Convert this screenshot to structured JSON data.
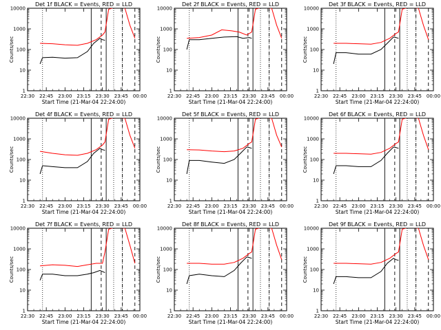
{
  "chart_data": {
    "type": "line",
    "y_scale": "log",
    "ylim": [
      1,
      10000
    ],
    "y_ticks": [
      "1",
      "10",
      "100",
      "1000",
      "10000"
    ],
    "ylabel": "Counts/sec",
    "x_ticks": [
      "22:30",
      "22:45",
      "23:00",
      "23:15",
      "23:30",
      "23:45",
      "00:00"
    ],
    "xlabel": "Start Time (21-Mar-04 22:24:00)",
    "xlim_minutes_after_2230": [
      0,
      90
    ],
    "marker_lines": {
      "dotted_minutes": [
        12,
        69,
        76
      ],
      "solid_minutes": [
        51,
        63
      ],
      "dashed_minutes": [
        59,
        76,
        86
      ]
    },
    "series_colors": {
      "Events": "#000000",
      "LLD": "#ff0000"
    },
    "panels": [
      {
        "title": "Det 1f BLACK = Events, RED = LLD",
        "series": [
          {
            "name": "LLD",
            "points": [
              [
                10,
                200
              ],
              [
                20,
                190
              ],
              [
                30,
                170
              ],
              [
                40,
                160
              ],
              [
                48,
                200
              ],
              [
                55,
                300
              ],
              [
                60,
                500
              ],
              [
                62,
                700
              ],
              [
                65,
                9000
              ],
              [
                70,
                11000
              ],
              [
                72,
                13000
              ],
              [
                78,
                10000
              ],
              [
                82,
                1500
              ],
              [
                86,
                350
              ]
            ]
          },
          {
            "name": "Events",
            "points": [
              [
                10,
                20
              ],
              [
                12,
                40
              ],
              [
                20,
                42
              ],
              [
                30,
                38
              ],
              [
                40,
                40
              ],
              [
                48,
                80
              ],
              [
                53,
                200
              ],
              [
                58,
                350
              ],
              [
                60,
                300
              ],
              [
                62,
                280
              ]
            ]
          }
        ]
      },
      {
        "title": "Det 2f BLACK = Events, RED = LLD",
        "series": [
          {
            "name": "LLD",
            "points": [
              [
                10,
                350
              ],
              [
                20,
                380
              ],
              [
                30,
                500
              ],
              [
                38,
                900
              ],
              [
                46,
                800
              ],
              [
                52,
                700
              ],
              [
                58,
                500
              ],
              [
                62,
                700
              ],
              [
                65,
                9000
              ],
              [
                70,
                11000
              ],
              [
                78,
                10000
              ],
              [
                82,
                1500
              ],
              [
                86,
                350
              ]
            ]
          },
          {
            "name": "Events",
            "points": [
              [
                10,
                100
              ],
              [
                12,
                300
              ],
              [
                20,
                300
              ],
              [
                30,
                350
              ],
              [
                40,
                400
              ],
              [
                50,
                420
              ],
              [
                55,
                350
              ],
              [
                60,
                380
              ],
              [
                62,
                350
              ]
            ]
          }
        ]
      },
      {
        "title": "Det 3f BLACK = Events, RED = LLD",
        "series": [
          {
            "name": "LLD",
            "points": [
              [
                10,
                200
              ],
              [
                20,
                200
              ],
              [
                30,
                190
              ],
              [
                40,
                180
              ],
              [
                48,
                220
              ],
              [
                55,
                350
              ],
              [
                60,
                600
              ],
              [
                62,
                700
              ],
              [
                65,
                9000
              ],
              [
                70,
                11000
              ],
              [
                78,
                10000
              ],
              [
                82,
                1500
              ],
              [
                86,
                300
              ]
            ]
          },
          {
            "name": "Events",
            "points": [
              [
                10,
                20
              ],
              [
                12,
                70
              ],
              [
                20,
                70
              ],
              [
                30,
                60
              ],
              [
                40,
                60
              ],
              [
                48,
                100
              ],
              [
                53,
                200
              ],
              [
                58,
                400
              ],
              [
                60,
                380
              ],
              [
                62,
                350
              ]
            ]
          }
        ]
      },
      {
        "title": "Det 4f BLACK = Events, RED = LLD",
        "series": [
          {
            "name": "LLD",
            "points": [
              [
                10,
                250
              ],
              [
                20,
                200
              ],
              [
                30,
                170
              ],
              [
                40,
                160
              ],
              [
                48,
                200
              ],
              [
                55,
                300
              ],
              [
                60,
                500
              ],
              [
                62,
                700
              ],
              [
                65,
                9000
              ],
              [
                70,
                11000
              ],
              [
                78,
                10000
              ],
              [
                82,
                1500
              ],
              [
                86,
                350
              ]
            ]
          },
          {
            "name": "Events",
            "points": [
              [
                10,
                20
              ],
              [
                12,
                50
              ],
              [
                20,
                45
              ],
              [
                30,
                40
              ],
              [
                40,
                40
              ],
              [
                48,
                80
              ],
              [
                53,
                200
              ],
              [
                58,
                350
              ],
              [
                60,
                300
              ],
              [
                62,
                280
              ]
            ]
          }
        ]
      },
      {
        "title": "Det 5f BLACK = Events, RED = LLD",
        "series": [
          {
            "name": "LLD",
            "points": [
              [
                10,
                300
              ],
              [
                20,
                290
              ],
              [
                30,
                260
              ],
              [
                40,
                240
              ],
              [
                48,
                260
              ],
              [
                55,
                350
              ],
              [
                60,
                600
              ],
              [
                62,
                700
              ],
              [
                65,
                9000
              ],
              [
                70,
                11000
              ],
              [
                78,
                10000
              ],
              [
                82,
                1500
              ],
              [
                86,
                400
              ]
            ]
          },
          {
            "name": "Events",
            "points": [
              [
                10,
                20
              ],
              [
                12,
                90
              ],
              [
                20,
                90
              ],
              [
                30,
                75
              ],
              [
                40,
                65
              ],
              [
                48,
                100
              ],
              [
                53,
                200
              ],
              [
                58,
                400
              ],
              [
                60,
                380
              ],
              [
                62,
                350
              ]
            ]
          }
        ]
      },
      {
        "title": "Det 6f BLACK = Events, RED = LLD",
        "series": [
          {
            "name": "LLD",
            "points": [
              [
                10,
                200
              ],
              [
                20,
                200
              ],
              [
                30,
                190
              ],
              [
                40,
                180
              ],
              [
                48,
                220
              ],
              [
                55,
                350
              ],
              [
                60,
                600
              ],
              [
                62,
                700
              ],
              [
                65,
                9000
              ],
              [
                70,
                11000
              ],
              [
                78,
                10000
              ],
              [
                82,
                1500
              ],
              [
                86,
                300
              ]
            ]
          },
          {
            "name": "Events",
            "points": [
              [
                10,
                20
              ],
              [
                12,
                50
              ],
              [
                20,
                50
              ],
              [
                30,
                45
              ],
              [
                40,
                45
              ],
              [
                48,
                90
              ],
              [
                53,
                200
              ],
              [
                58,
                400
              ],
              [
                60,
                380
              ],
              [
                62,
                350
              ]
            ]
          }
        ]
      },
      {
        "title": "Det 7f BLACK = Events, RED = LLD",
        "series": [
          {
            "name": "LLD",
            "points": [
              [
                10,
                150
              ],
              [
                20,
                170
              ],
              [
                30,
                160
              ],
              [
                40,
                140
              ],
              [
                48,
                170
              ],
              [
                55,
                200
              ],
              [
                60,
                200
              ],
              [
                62,
                700
              ],
              [
                65,
                9000
              ],
              [
                70,
                11000
              ],
              [
                78,
                10000
              ],
              [
                82,
                1500
              ],
              [
                86,
                200
              ]
            ]
          },
          {
            "name": "Events",
            "points": [
              [
                10,
                30
              ],
              [
                12,
                60
              ],
              [
                20,
                60
              ],
              [
                30,
                50
              ],
              [
                40,
                50
              ],
              [
                48,
                60
              ],
              [
                53,
                70
              ],
              [
                58,
                90
              ],
              [
                60,
                80
              ],
              [
                62,
                70
              ]
            ]
          }
        ]
      },
      {
        "title": "Det 8f BLACK = Events, RED = LLD",
        "series": [
          {
            "name": "LLD",
            "points": [
              [
                10,
                200
              ],
              [
                20,
                200
              ],
              [
                30,
                180
              ],
              [
                40,
                180
              ],
              [
                48,
                220
              ],
              [
                55,
                350
              ],
              [
                60,
                600
              ],
              [
                62,
                700
              ],
              [
                65,
                9000
              ],
              [
                70,
                11000
              ],
              [
                78,
                10000
              ],
              [
                82,
                1500
              ],
              [
                86,
                300
              ]
            ]
          },
          {
            "name": "Events",
            "points": [
              [
                10,
                20
              ],
              [
                12,
                50
              ],
              [
                20,
                60
              ],
              [
                30,
                50
              ],
              [
                40,
                45
              ],
              [
                48,
                90
              ],
              [
                53,
                200
              ],
              [
                58,
                400
              ],
              [
                60,
                380
              ],
              [
                62,
                350
              ]
            ]
          }
        ]
      },
      {
        "title": "Det 9f BLACK = Events, RED = LLD",
        "series": [
          {
            "name": "LLD",
            "points": [
              [
                10,
                200
              ],
              [
                20,
                200
              ],
              [
                30,
                190
              ],
              [
                40,
                180
              ],
              [
                48,
                220
              ],
              [
                55,
                350
              ],
              [
                60,
                600
              ],
              [
                62,
                700
              ],
              [
                65,
                9000
              ],
              [
                70,
                11000
              ],
              [
                78,
                10000
              ],
              [
                82,
                1500
              ],
              [
                86,
                300
              ]
            ]
          },
          {
            "name": "Events",
            "points": [
              [
                10,
                20
              ],
              [
                12,
                45
              ],
              [
                20,
                45
              ],
              [
                30,
                40
              ],
              [
                40,
                40
              ],
              [
                48,
                80
              ],
              [
                53,
                200
              ],
              [
                58,
                350
              ],
              [
                60,
                300
              ],
              [
                62,
                280
              ]
            ]
          }
        ]
      }
    ]
  }
}
